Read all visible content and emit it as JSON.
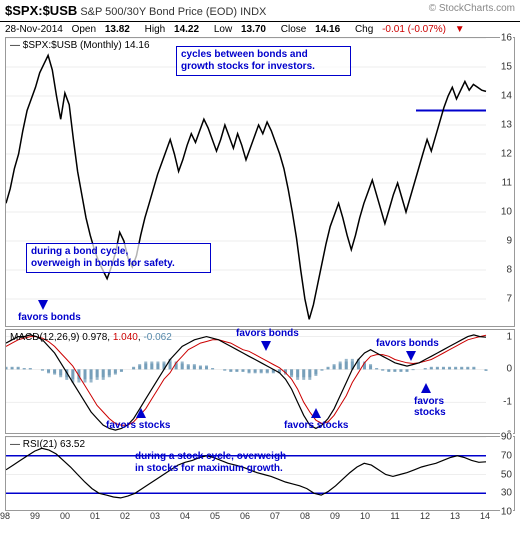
{
  "header": {
    "ticker": "$SPX:$USB",
    "description": "S&P 500/30Y Bond Price (EOD) INDX",
    "watermark": "© StockCharts.com",
    "date": "28-Nov-2014",
    "open_label": "Open",
    "open": "13.82",
    "high_label": "High",
    "high": "14.22",
    "low_label": "Low",
    "low": "13.70",
    "close_label": "Close",
    "close": "14.16",
    "chg_label": "Chg",
    "chg": "-0.01 (-0.07%)",
    "chg_arrow": "▼"
  },
  "main": {
    "legend": "$SPX:$USB (Monthly) 14.16",
    "ylim": [
      6,
      16
    ],
    "yticks": [
      7,
      8,
      9,
      10,
      11,
      12,
      13,
      14,
      15,
      16
    ],
    "line_color": "#000000",
    "line_width": 1.5,
    "blue_line_y": 13.5,
    "data": [
      10.3,
      10.8,
      11.5,
      12.0,
      12.8,
      13.5,
      13.9,
      14.3,
      14.8,
      15.1,
      15.4,
      14.9,
      14.0,
      13.2,
      14.1,
      13.7,
      12.5,
      11.4,
      10.6,
      9.8,
      9.2,
      8.7,
      8.3,
      8.0,
      7.7,
      8.1,
      8.6,
      9.3,
      9.0,
      8.4,
      8.1,
      8.5,
      9.2,
      9.8,
      10.3,
      10.8,
      11.3,
      11.7,
      12.1,
      12.5,
      12.0,
      11.4,
      11.8,
      12.3,
      12.7,
      12.4,
      12.8,
      13.2,
      12.9,
      12.5,
      12.1,
      12.5,
      13.0,
      12.6,
      12.2,
      12.7,
      12.3,
      11.8,
      12.2,
      12.6,
      13.0,
      12.7,
      13.1,
      12.8,
      12.4,
      12.0,
      11.5,
      10.8,
      10.0,
      9.1,
      8.0,
      7.0,
      6.3,
      6.8,
      7.5,
      8.2,
      8.9,
      9.5,
      9.9,
      10.3,
      9.8,
      9.2,
      8.7,
      9.2,
      9.8,
      10.3,
      10.7,
      11.1,
      10.6,
      10.1,
      9.6,
      10.1,
      10.6,
      11.0,
      10.5,
      10.0,
      10.5,
      11.0,
      11.5,
      12.0,
      12.5,
      12.1,
      12.6,
      13.1,
      13.6,
      14.0,
      14.3,
      13.9,
      14.2,
      14.5,
      14.2,
      14.4,
      14.3,
      14.2,
      14.16
    ],
    "annotations": {
      "top": "cycles between bonds and\ngrowth stocks for investors.",
      "mid": "during a bond cycle,\noverweigh in bonds for safety.",
      "bonds": "favors bonds"
    }
  },
  "macd": {
    "legend_label": "MACD(12,26,9)",
    "v1": "0.978",
    "v2": "1.040",
    "v3": "-0.062",
    "ylim": [
      -2,
      1.2
    ],
    "yticks": [
      -2,
      -1,
      0,
      1
    ],
    "colors": {
      "macd": "#000000",
      "signal": "#cc0000",
      "hist": "#5588aa"
    },
    "macd_data": [
      0.8,
      0.9,
      1.0,
      1.0,
      1.05,
      1.0,
      0.9,
      0.7,
      0.5,
      0.2,
      -0.1,
      -0.4,
      -0.7,
      -1.0,
      -1.3,
      -1.5,
      -1.7,
      -1.8,
      -1.85,
      -1.8,
      -1.7,
      -1.5,
      -1.2,
      -0.9,
      -0.6,
      -0.3,
      0.0,
      0.3,
      0.5,
      0.7,
      0.8,
      0.9,
      0.95,
      1.0,
      0.95,
      0.9,
      0.8,
      0.7,
      0.6,
      0.5,
      0.4,
      0.3,
      0.2,
      0.1,
      0.0,
      -0.1,
      -0.3,
      -0.6,
      -1.0,
      -1.4,
      -1.7,
      -1.8,
      -1.7,
      -1.5,
      -1.2,
      -0.8,
      -0.4,
      0.0,
      0.3,
      0.5,
      0.6,
      0.5,
      0.4,
      0.3,
      0.2,
      0.15,
      0.1,
      0.15,
      0.2,
      0.3,
      0.4,
      0.5,
      0.6,
      0.7,
      0.8,
      0.9,
      1.0,
      1.05,
      1.0,
      0.98
    ],
    "signal_data": [
      0.7,
      0.8,
      0.9,
      0.95,
      1.0,
      1.0,
      0.95,
      0.85,
      0.7,
      0.5,
      0.3,
      0.1,
      -0.2,
      -0.5,
      -0.8,
      -1.1,
      -1.3,
      -1.5,
      -1.65,
      -1.7,
      -1.7,
      -1.6,
      -1.4,
      -1.2,
      -0.9,
      -0.6,
      -0.3,
      -0.1,
      0.2,
      0.4,
      0.6,
      0.7,
      0.8,
      0.85,
      0.9,
      0.9,
      0.85,
      0.8,
      0.7,
      0.6,
      0.55,
      0.45,
      0.35,
      0.25,
      0.15,
      0.05,
      -0.1,
      -0.3,
      -0.6,
      -1.0,
      -1.3,
      -1.55,
      -1.65,
      -1.6,
      -1.4,
      -1.1,
      -0.8,
      -0.4,
      -0.1,
      0.2,
      0.4,
      0.45,
      0.45,
      0.4,
      0.3,
      0.25,
      0.2,
      0.18,
      0.2,
      0.25,
      0.3,
      0.4,
      0.5,
      0.6,
      0.7,
      0.8,
      0.9,
      0.95,
      1.0,
      1.04
    ],
    "annotations": {
      "favors_bonds": "favors bonds",
      "favors_stocks": "favors stocks"
    }
  },
  "rsi": {
    "legend_label": "RSI(21)",
    "legend_val": "63.52",
    "ylim": [
      10,
      90
    ],
    "yticks": [
      10,
      30,
      50,
      70,
      90
    ],
    "blue_lines": [
      30,
      70
    ],
    "line_color": "#000000",
    "data": [
      55,
      60,
      65,
      70,
      75,
      78,
      76,
      72,
      65,
      58,
      50,
      42,
      35,
      30,
      28,
      26,
      25,
      27,
      30,
      35,
      40,
      45,
      50,
      55,
      60,
      63,
      65,
      68,
      70,
      68,
      65,
      62,
      60,
      58,
      55,
      52,
      50,
      48,
      45,
      42,
      40,
      38,
      35,
      30,
      28,
      32,
      38,
      45,
      52,
      58,
      62,
      60,
      55,
      50,
      48,
      50,
      52,
      55,
      58,
      60,
      62,
      65,
      68,
      70,
      68,
      65,
      63,
      63.5
    ],
    "annotation": "during a stock cycle, overweigh\nin stocks for maximum growth."
  },
  "xaxis": {
    "years": [
      "98",
      "99",
      "00",
      "01",
      "02",
      "03",
      "04",
      "05",
      "06",
      "07",
      "08",
      "09",
      "10",
      "11",
      "12",
      "13",
      "14"
    ]
  }
}
